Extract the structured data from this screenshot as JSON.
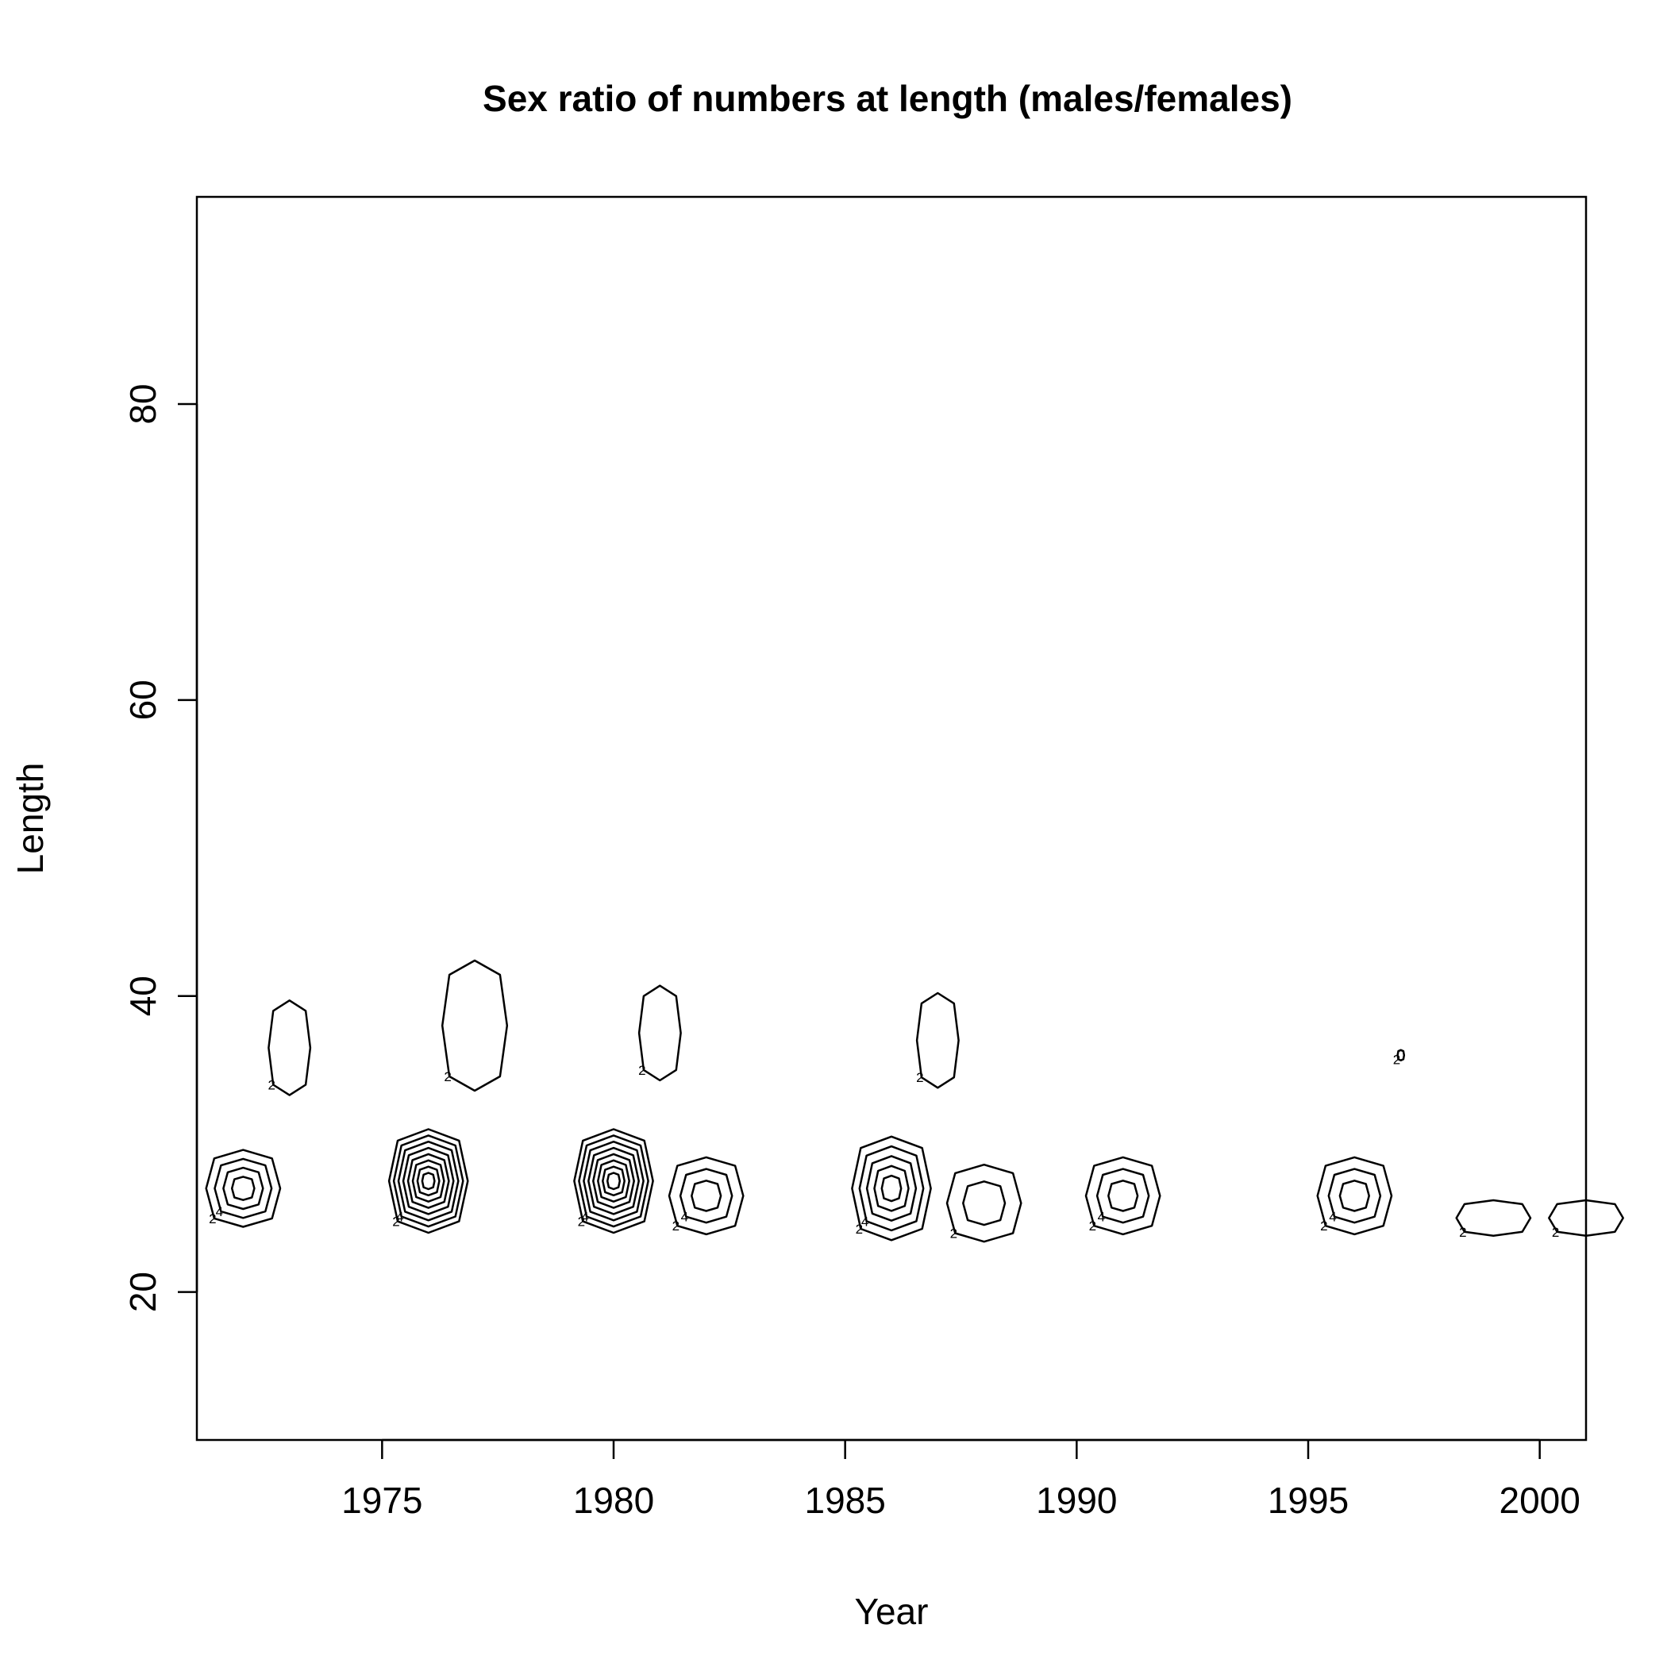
{
  "chart_data": {
    "type": "contour",
    "title": "Sex ratio of numbers at length (males/females)",
    "xlabel": "Year",
    "ylabel": "Length",
    "xlim": [
      1971,
      2001
    ],
    "ylim": [
      10,
      94
    ],
    "xticks": [
      1975,
      1980,
      1985,
      1990,
      1995,
      2000
    ],
    "yticks": [
      20,
      40,
      60,
      80
    ],
    "grid": false,
    "legend": "none",
    "peaks": [
      {
        "year": 1972,
        "length": 27,
        "levels": [
          2,
          4,
          6,
          8
        ]
      },
      {
        "year": 1973,
        "length": 36.5,
        "levels": [
          2
        ]
      },
      {
        "year": 1976,
        "length": 27.5,
        "levels": [
          2,
          4,
          6,
          8,
          10,
          12,
          14,
          16
        ]
      },
      {
        "year": 1977,
        "length": 38,
        "levels": [
          2
        ]
      },
      {
        "year": 1980,
        "length": 27.5,
        "levels": [
          2,
          4,
          6,
          8,
          10,
          12,
          14,
          16
        ]
      },
      {
        "year": 1981,
        "length": 37.5,
        "levels": [
          2
        ]
      },
      {
        "year": 1982,
        "length": 26.5,
        "levels": [
          2,
          4,
          6
        ]
      },
      {
        "year": 1986,
        "length": 27,
        "levels": [
          2,
          4,
          6,
          8,
          10
        ]
      },
      {
        "year": 1987,
        "length": 37,
        "levels": [
          2
        ]
      },
      {
        "year": 1988,
        "length": 26,
        "levels": [
          2,
          4
        ]
      },
      {
        "year": 1991,
        "length": 26.5,
        "levels": [
          2,
          4,
          6
        ]
      },
      {
        "year": 1996,
        "length": 26.5,
        "levels": [
          2,
          4,
          6
        ]
      },
      {
        "year": 1997,
        "length": 36,
        "levels": [
          2
        ]
      },
      {
        "year": 1999,
        "length": 25,
        "levels": [
          2
        ]
      },
      {
        "year": 2001,
        "length": 25,
        "levels": [
          2
        ]
      }
    ]
  }
}
